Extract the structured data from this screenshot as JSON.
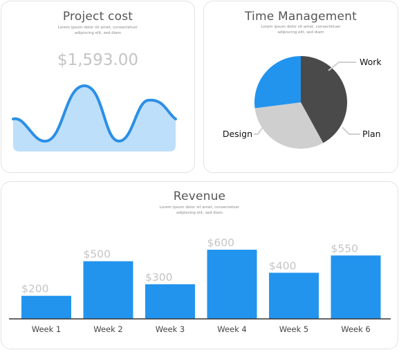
{
  "project_cost": {
    "title": "Project cost",
    "subtitle": [
      "Lorem ipsum dolor sit amet, consectetuer",
      "adipiscing elit, sed diam"
    ],
    "value": "$1,593.00",
    "colors": {
      "line": "#2b8fe6",
      "fill": "#bddffa"
    }
  },
  "chart_data": [
    {
      "type": "pie",
      "title": "Time Management",
      "subtitle": [
        "Lorem ipsum dolor sit amet, consectetuer",
        "adipiscing elit, sed diam"
      ],
      "slices": [
        {
          "label": "Work",
          "value": 42,
          "color": "#4a4a4a"
        },
        {
          "label": "Plan",
          "value": 31,
          "color": "#cfcfcf"
        },
        {
          "label": "Design",
          "value": 27,
          "color": "#2294ee"
        }
      ]
    },
    {
      "type": "bar",
      "title": "Revenue",
      "subtitle": [
        "Lorem ipsum dolor sit amet, consectetuer",
        "adipiscing elit, sed diam"
      ],
      "categories": [
        "Week 1",
        "Week 2",
        "Week 3",
        "Week 4",
        "Week 5",
        "Week 6"
      ],
      "values": [
        200,
        500,
        300,
        600,
        400,
        550
      ],
      "value_labels": [
        "$200",
        "$500",
        "$300",
        "$600",
        "$400",
        "$550"
      ],
      "ylim": [
        0,
        600
      ],
      "grid": false,
      "color": "#2294ee"
    }
  ]
}
